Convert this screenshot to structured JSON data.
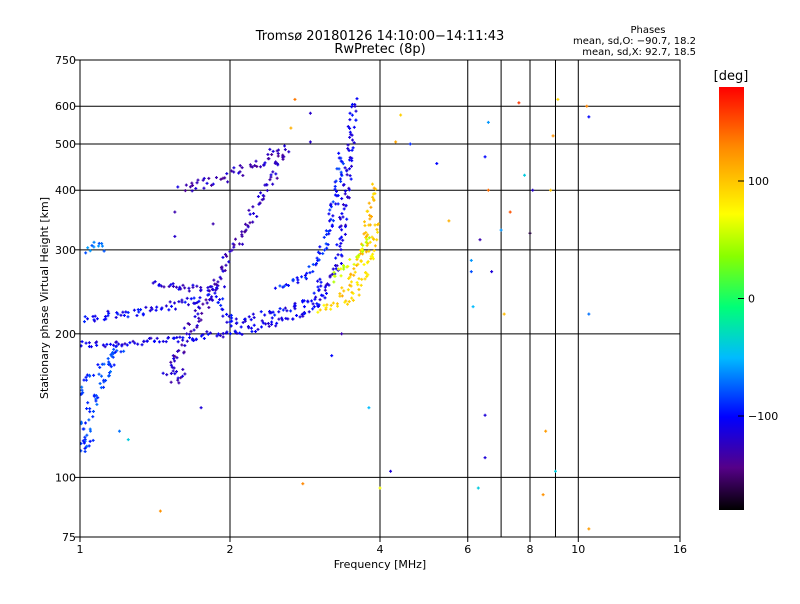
{
  "chart_data": {
    "type": "scatter",
    "title": "Tromsø 20180126 14:10:00−14:11:43",
    "subtitle": "RwPretec (8p)",
    "stats": {
      "heading": "Phases",
      "line1": "mean, sd,O: −90.7, 18.2",
      "line2": "mean, sd,X:  92.7, 18.5"
    },
    "xlabel": "Frequency [MHz]",
    "ylabel": "Stationary phase Virtual Height [km]",
    "x_scale": "log",
    "y_scale": "log",
    "xlim": [
      1,
      16
    ],
    "ylim": [
      75,
      750
    ],
    "x_ticks": [
      1,
      2,
      4,
      6,
      8,
      10,
      16
    ],
    "x_tick_labels": [
      "1",
      "2",
      "4",
      "6",
      "8",
      "10",
      "16"
    ],
    "x_gridlines": [
      2,
      4,
      6,
      7,
      8,
      9,
      10
    ],
    "y_ticks": [
      75,
      100,
      200,
      300,
      400,
      500,
      600,
      750
    ],
    "y_tick_labels": [
      "75",
      "100",
      "200",
      "300",
      "400",
      "500",
      "600",
      "750"
    ],
    "y_gridlines": [
      100,
      200,
      300,
      400,
      500,
      600
    ],
    "colorbar": {
      "label": "[deg]",
      "range": [
        -180,
        180
      ],
      "ticks": [
        100,
        0,
        -100
      ],
      "tick_labels": [
        "100",
        "0",
        "−100"
      ]
    },
    "traces": [
      {
        "phase": -110,
        "spread": 0.022,
        "points": [
          [
            1.0,
            190
          ],
          [
            1.1,
            190
          ],
          [
            1.2,
            191
          ],
          [
            1.35,
            192
          ],
          [
            1.5,
            194
          ],
          [
            1.7,
            197
          ],
          [
            1.9,
            200
          ],
          [
            2.1,
            203
          ],
          [
            2.3,
            207
          ],
          [
            2.6,
            214
          ],
          [
            2.8,
            220
          ],
          [
            3.0,
            230
          ],
          [
            3.1,
            245
          ],
          [
            3.2,
            260
          ],
          [
            3.3,
            285
          ],
          [
            3.35,
            320
          ],
          [
            3.4,
            370
          ],
          [
            3.45,
            430
          ],
          [
            3.5,
            520
          ],
          [
            3.55,
            620
          ]
        ]
      },
      {
        "phase": -105,
        "spread": 0.025,
        "points": [
          [
            1.02,
            215
          ],
          [
            1.1,
            218
          ],
          [
            1.3,
            222
          ],
          [
            1.5,
            228
          ],
          [
            1.7,
            236
          ],
          [
            1.9,
            240
          ],
          [
            2.0,
            210
          ],
          [
            2.2,
            215
          ],
          [
            2.5,
            222
          ],
          [
            2.9,
            235
          ],
          [
            3.1,
            260
          ]
        ]
      },
      {
        "phase": -115,
        "spread": 0.02,
        "points": [
          [
            1.4,
            255
          ],
          [
            1.6,
            250
          ],
          [
            1.8,
            248
          ],
          [
            1.95,
            248
          ]
        ]
      },
      {
        "phase": -95,
        "spread": 0.02,
        "points": [
          [
            2.5,
            250
          ],
          [
            2.8,
            260
          ],
          [
            3.0,
            285
          ],
          [
            3.1,
            310
          ],
          [
            3.2,
            350
          ],
          [
            3.25,
            380
          ],
          [
            3.3,
            420
          ],
          [
            3.35,
            480
          ]
        ]
      },
      {
        "phase": -85,
        "spread": 0.03,
        "points": [
          [
            1.0,
            150
          ],
          [
            1.05,
            160
          ],
          [
            1.1,
            170
          ],
          [
            1.15,
            180
          ],
          [
            1.2,
            185
          ],
          [
            1.02,
            130
          ],
          [
            1.05,
            120
          ],
          [
            1.0,
            115
          ],
          [
            1.06,
            118
          ]
        ]
      },
      {
        "phase": -70,
        "spread": 0.02,
        "points": [
          [
            1.02,
            300
          ],
          [
            1.08,
            310
          ],
          [
            1.12,
            300
          ]
        ]
      },
      {
        "phase": -125,
        "spread": 0.03,
        "points": [
          [
            1.6,
            400
          ],
          [
            2.0,
            430
          ],
          [
            2.3,
            460
          ],
          [
            2.6,
            490
          ],
          [
            1.5,
            165
          ],
          [
            1.6,
            160
          ],
          [
            1.62,
            168
          ]
        ]
      },
      {
        "phase": 88,
        "spread": 0.02,
        "points": [
          [
            3.0,
            225
          ],
          [
            3.2,
            228
          ],
          [
            3.4,
            232
          ],
          [
            3.55,
            240
          ],
          [
            3.65,
            255
          ],
          [
            3.75,
            270
          ],
          [
            3.8,
            285
          ],
          [
            3.85,
            300
          ],
          [
            3.9,
            320
          ],
          [
            3.95,
            345
          ]
        ]
      },
      {
        "phase": 100,
        "spread": 0.02,
        "points": [
          [
            3.3,
            240
          ],
          [
            3.5,
            255
          ],
          [
            3.6,
            275
          ],
          [
            3.7,
            300
          ],
          [
            3.75,
            330
          ],
          [
            3.8,
            360
          ],
          [
            3.85,
            385
          ],
          [
            3.9,
            410
          ]
        ]
      },
      {
        "phase": 60,
        "spread": 0.02,
        "points": [
          [
            3.2,
            260
          ],
          [
            3.4,
            275
          ],
          [
            3.6,
            290
          ],
          [
            3.7,
            305
          ],
          [
            3.8,
            320
          ]
        ]
      }
    ],
    "scatter_points": [
      [
        1.45,
        85,
        125
      ],
      [
        2.8,
        97,
        130
      ],
      [
        4.0,
        95,
        70
      ],
      [
        4.2,
        103,
        -115
      ],
      [
        6.3,
        95,
        -40
      ],
      [
        6.5,
        135,
        -115
      ],
      [
        6.5,
        110,
        -115
      ],
      [
        8.5,
        92,
        125
      ],
      [
        8.6,
        125,
        120
      ],
      [
        9.0,
        103,
        -40
      ],
      [
        10.5,
        78,
        120
      ],
      [
        3.8,
        140,
        -50
      ],
      [
        1.75,
        140,
        -115
      ],
      [
        1.2,
        125,
        -70
      ],
      [
        1.25,
        120,
        -40
      ],
      [
        1.55,
        165,
        -110
      ],
      [
        3.2,
        180,
        -100
      ],
      [
        3.35,
        200,
        -130
      ],
      [
        2.7,
        620,
        135
      ],
      [
        2.9,
        580,
        -120
      ],
      [
        2.65,
        540,
        110
      ],
      [
        4.4,
        575,
        95
      ],
      [
        4.6,
        500,
        -90
      ],
      [
        5.2,
        455,
        -100
      ],
      [
        5.5,
        345,
        110
      ],
      [
        6.1,
        285,
        -60
      ],
      [
        6.1,
        270,
        -80
      ],
      [
        6.15,
        228,
        -50
      ],
      [
        6.35,
        315,
        -130
      ],
      [
        6.6,
        555,
        -60
      ],
      [
        6.5,
        470,
        -100
      ],
      [
        6.6,
        400,
        140
      ],
      [
        6.7,
        270,
        -115
      ],
      [
        7.1,
        220,
        105
      ],
      [
        7.3,
        360,
        150
      ],
      [
        7.6,
        610,
        160
      ],
      [
        7.8,
        430,
        -40
      ],
      [
        8.0,
        325,
        -165
      ],
      [
        8.1,
        400,
        -120
      ],
      [
        8.8,
        400,
        100
      ],
      [
        8.9,
        520,
        125
      ],
      [
        9.1,
        620,
        90
      ],
      [
        10.5,
        570,
        -100
      ],
      [
        10.5,
        220,
        -70
      ],
      [
        10.4,
        600,
        130
      ],
      [
        7.0,
        330,
        -60
      ],
      [
        4.3,
        505,
        115
      ],
      [
        2.9,
        505,
        -120
      ],
      [
        1.85,
        340,
        -130
      ],
      [
        1.55,
        320,
        -120
      ],
      [
        1.55,
        360,
        -130
      ],
      [
        2.35,
        410,
        -120
      ]
    ]
  }
}
